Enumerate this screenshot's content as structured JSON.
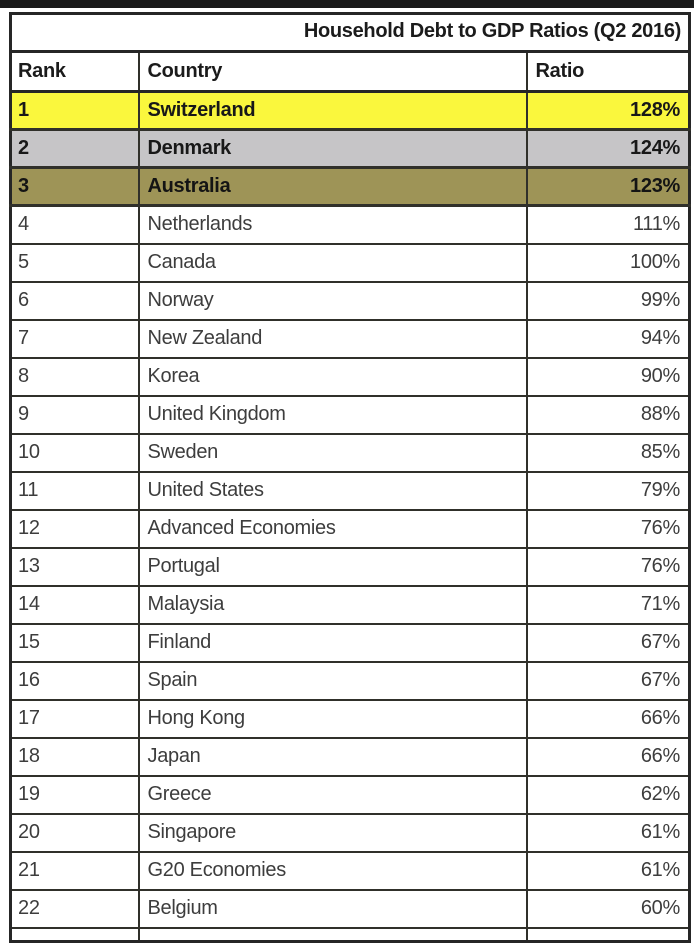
{
  "table": {
    "title": "Household Debt to GDP Ratios (Q2 2016)",
    "columns": {
      "rank": "Rank",
      "country": "Country",
      "ratio": "Ratio"
    },
    "rows": [
      {
        "rank": "1",
        "country": "Switzerland",
        "ratio": "128%",
        "highlight": "yellow"
      },
      {
        "rank": "2",
        "country": "Denmark",
        "ratio": "124%",
        "highlight": "grey"
      },
      {
        "rank": "3",
        "country": "Australia",
        "ratio": "123%",
        "highlight": "olive"
      },
      {
        "rank": "4",
        "country": "Netherlands",
        "ratio": "111%",
        "highlight": null
      },
      {
        "rank": "5",
        "country": "Canada",
        "ratio": "100%",
        "highlight": null
      },
      {
        "rank": "6",
        "country": "Norway",
        "ratio": "99%",
        "highlight": null
      },
      {
        "rank": "7",
        "country": "New Zealand",
        "ratio": "94%",
        "highlight": null
      },
      {
        "rank": "8",
        "country": "Korea",
        "ratio": "90%",
        "highlight": null
      },
      {
        "rank": "9",
        "country": "United Kingdom",
        "ratio": "88%",
        "highlight": null
      },
      {
        "rank": "10",
        "country": "Sweden",
        "ratio": "85%",
        "highlight": null
      },
      {
        "rank": "11",
        "country": "United States",
        "ratio": "79%",
        "highlight": null
      },
      {
        "rank": "12",
        "country": "Advanced Economies",
        "ratio": "76%",
        "highlight": null
      },
      {
        "rank": "13",
        "country": "Portugal",
        "ratio": "76%",
        "highlight": null
      },
      {
        "rank": "14",
        "country": "Malaysia",
        "ratio": "71%",
        "highlight": null
      },
      {
        "rank": "15",
        "country": "Finland",
        "ratio": "67%",
        "highlight": null
      },
      {
        "rank": "16",
        "country": "Spain",
        "ratio": "67%",
        "highlight": null
      },
      {
        "rank": "17",
        "country": "Hong Kong",
        "ratio": "66%",
        "highlight": null
      },
      {
        "rank": "18",
        "country": "Japan",
        "ratio": "66%",
        "highlight": null
      },
      {
        "rank": "19",
        "country": "Greece",
        "ratio": "62%",
        "highlight": null
      },
      {
        "rank": "20",
        "country": "Singapore",
        "ratio": "61%",
        "highlight": null
      },
      {
        "rank": "21",
        "country": "G20 Economies",
        "ratio": "61%",
        "highlight": null
      },
      {
        "rank": "22",
        "country": "Belgium",
        "ratio": "60%",
        "highlight": null
      }
    ]
  },
  "colors": {
    "highlight_yellow": "#faf73d",
    "highlight_grey": "#c6c5c7",
    "highlight_olive": "#9e9457",
    "border": "#30302a",
    "top_bar": "#1a1a1a"
  },
  "chart_data": {
    "type": "table",
    "title": "Household Debt to GDP Ratios (Q2 2016)",
    "columns": [
      "Rank",
      "Country",
      "Ratio"
    ],
    "categories": [
      "Switzerland",
      "Denmark",
      "Australia",
      "Netherlands",
      "Canada",
      "Norway",
      "New Zealand",
      "Korea",
      "United Kingdom",
      "Sweden",
      "United States",
      "Advanced Economies",
      "Portugal",
      "Malaysia",
      "Finland",
      "Spain",
      "Hong Kong",
      "Japan",
      "Greece",
      "Singapore",
      "G20 Economies",
      "Belgium"
    ],
    "values": [
      128,
      124,
      123,
      111,
      100,
      99,
      94,
      90,
      88,
      85,
      79,
      76,
      76,
      71,
      67,
      67,
      66,
      66,
      62,
      61,
      61,
      60
    ],
    "value_unit": "% of GDP",
    "highlighted_rows": {
      "Switzerland": "yellow",
      "Denmark": "grey",
      "Australia": "olive"
    }
  }
}
